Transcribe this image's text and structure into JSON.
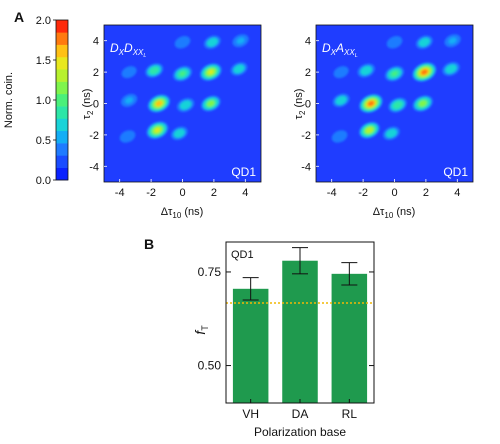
{
  "colors": {
    "map_background": "#1f3dff",
    "bar": "#1f9a4e",
    "dashed_line": "#f2b705",
    "axis": "#111111",
    "colorscale": [
      "#0a22ff",
      "#1a4cff",
      "#1f7bff",
      "#13aef5",
      "#19d3d8",
      "#2de6a7",
      "#4af07a",
      "#7ff54c",
      "#b7f12e",
      "#e8e81e",
      "#ffc115",
      "#ff7a0f",
      "#ff2a0a"
    ]
  },
  "chart_data": [
    {
      "type": "heatmap",
      "panel": "A",
      "colorbar": {
        "label": "Norm. coin.",
        "ticks": [
          "0.0",
          "0.5",
          "1.0",
          "1.5",
          "2.0"
        ],
        "range": [
          0,
          2
        ]
      },
      "plots": [
        {
          "inset_label_main": "D",
          "inset_label_sub1": "X",
          "inset_label_main2": "D",
          "inset_label_sub2": "XX",
          "inset_label_suffix": "L",
          "corner_label": "QD1",
          "xlabel_main": "Δτ",
          "xlabel_sub": "10",
          "xlabel_unit": " (ns)",
          "ylabel_main": "τ",
          "ylabel_sub": "2",
          "ylabel_unit": " (ns)",
          "xticks": [
            "-4",
            "-2",
            "0",
            "2",
            "4"
          ],
          "yticks": [
            "4",
            "2",
            "0",
            "-2",
            "-4"
          ],
          "xlim": [
            -5,
            5
          ],
          "ylim": [
            -5,
            5
          ],
          "peaks": [
            {
              "x": -1.5,
              "y": 0,
              "value": 1.6
            },
            {
              "x": 1.8,
              "y": 2.0,
              "value": 1.5
            },
            {
              "x": -1.6,
              "y": -1.7,
              "value": 1.5
            },
            {
              "x": 1.8,
              "y": 0,
              "value": 1.1
            },
            {
              "x": 0,
              "y": 1.9,
              "value": 1.0
            },
            {
              "x": -1.8,
              "y": 2.1,
              "value": 0.8
            },
            {
              "x": 0.2,
              "y": -0.1,
              "value": 0.7
            },
            {
              "x": -3.4,
              "y": 0.2,
              "value": 0.5
            },
            {
              "x": 1.9,
              "y": 3.9,
              "value": 0.6
            },
            {
              "x": 3.6,
              "y": 2.2,
              "value": 0.6
            },
            {
              "x": -0.2,
              "y": -1.9,
              "value": 0.6
            },
            {
              "x": -3.5,
              "y": -2.1,
              "value": 0.4
            },
            {
              "x": 3.7,
              "y": 4.0,
              "value": 0.5
            },
            {
              "x": 0.0,
              "y": 3.9,
              "value": 0.4
            },
            {
              "x": -3.4,
              "y": 2.0,
              "value": 0.3
            }
          ]
        },
        {
          "inset_label_main": "D",
          "inset_label_sub1": "X",
          "inset_label_main2": "A",
          "inset_label_sub2": "XX",
          "inset_label_suffix": "L",
          "corner_label": "QD1",
          "xlabel_main": "Δτ",
          "xlabel_sub": "10",
          "xlabel_unit": " (ns)",
          "ylabel_main": "τ",
          "ylabel_sub": "2",
          "ylabel_unit": " (ns)",
          "xticks": [
            "-4",
            "-2",
            "0",
            "2",
            "4"
          ],
          "yticks": [
            "4",
            "2",
            "0",
            "-2",
            "-4"
          ],
          "xlim": [
            -5,
            5
          ],
          "ylim": [
            -5,
            5
          ],
          "peaks": [
            {
              "x": -1.5,
              "y": 0,
              "value": 1.8
            },
            {
              "x": 1.9,
              "y": 2.0,
              "value": 1.9
            },
            {
              "x": -1.6,
              "y": -1.7,
              "value": 1.3
            },
            {
              "x": 1.8,
              "y": 0,
              "value": 1.2
            },
            {
              "x": 0,
              "y": 1.9,
              "value": 1.0
            },
            {
              "x": -1.8,
              "y": 2.1,
              "value": 0.7
            },
            {
              "x": 0.2,
              "y": -0.1,
              "value": 0.9
            },
            {
              "x": -3.4,
              "y": 0.2,
              "value": 0.6
            },
            {
              "x": 1.9,
              "y": 3.9,
              "value": 0.6
            },
            {
              "x": 3.6,
              "y": 2.2,
              "value": 0.7
            },
            {
              "x": -0.2,
              "y": -1.9,
              "value": 0.6
            },
            {
              "x": -3.5,
              "y": -2.1,
              "value": 0.4
            },
            {
              "x": 3.7,
              "y": 4.0,
              "value": 0.5
            },
            {
              "x": 0.0,
              "y": 3.9,
              "value": 0.4
            },
            {
              "x": -3.4,
              "y": 2.0,
              "value": 0.3
            }
          ]
        }
      ]
    },
    {
      "type": "bar",
      "panel": "B",
      "corner_label": "QD1",
      "categories": [
        "VH",
        "DA",
        "RL"
      ],
      "values": [
        0.705,
        0.78,
        0.745
      ],
      "errors": [
        0.03,
        0.035,
        0.03
      ],
      "reference_line": 0.667,
      "ylim": [
        0.4,
        0.83
      ],
      "yticks": [
        "0.75",
        "0.50"
      ],
      "ytick_values": [
        0.75,
        0.5
      ],
      "ylabel_main": "f",
      "ylabel_sub": "T",
      "xlabel": "Polarization base"
    }
  ]
}
